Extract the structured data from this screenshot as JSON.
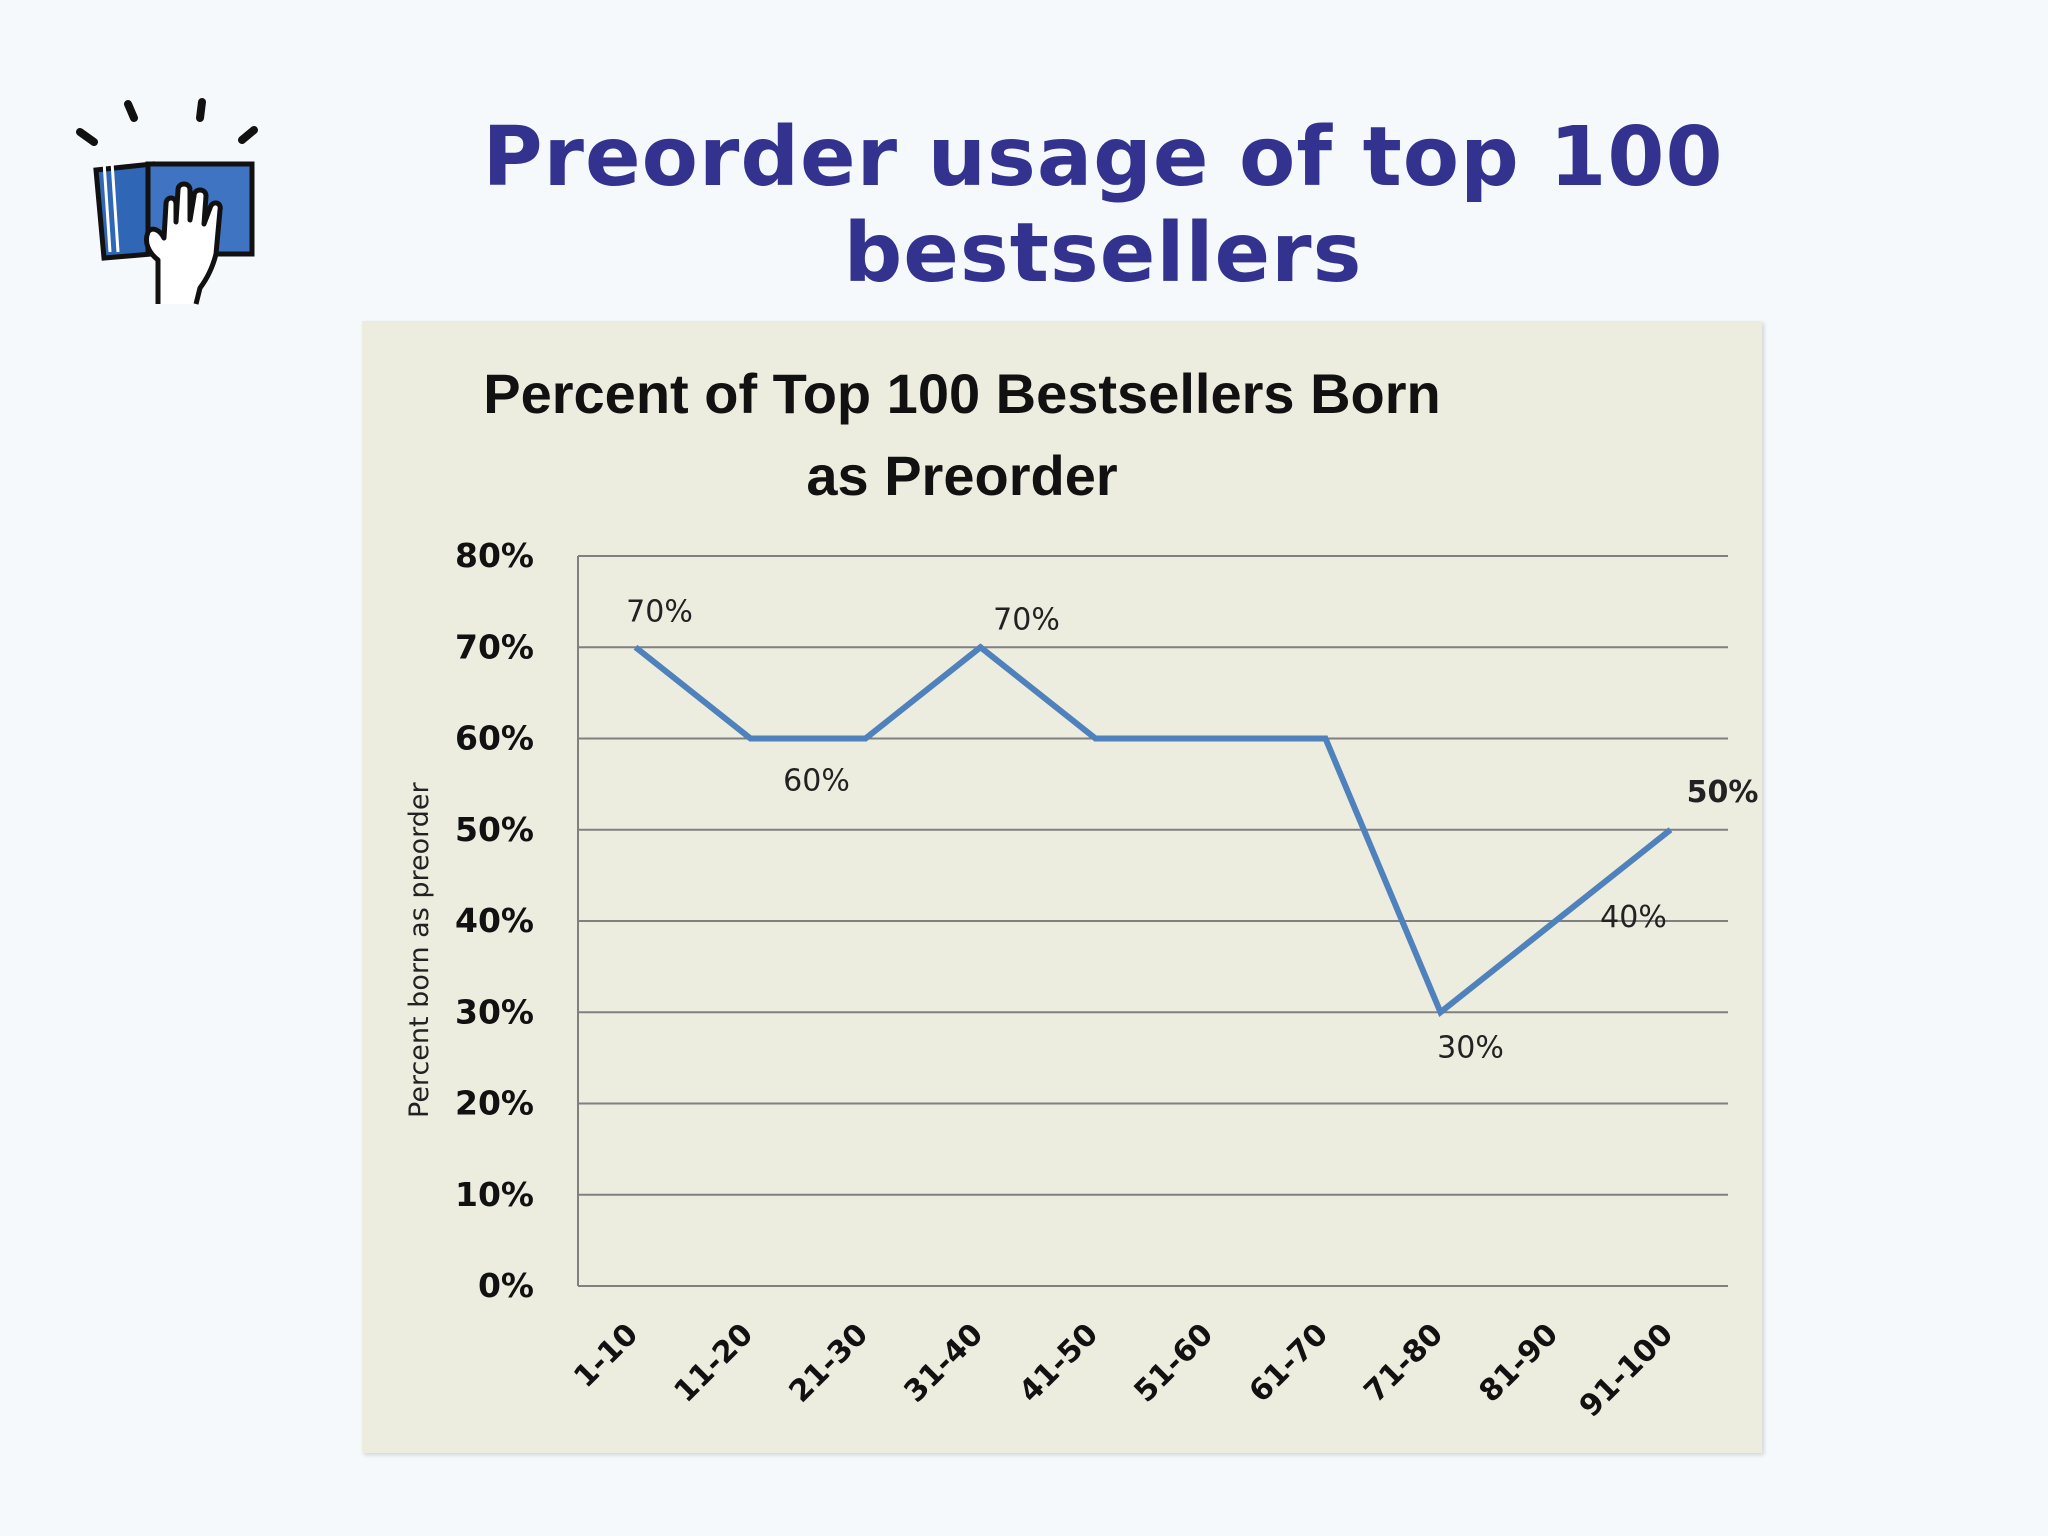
{
  "slide": {
    "title": "Preorder usage of top 100 bestsellers"
  },
  "logo": {
    "icon": "book-with-hand-icon",
    "colors": {
      "book": "#3e74c1",
      "outline": "#111111"
    }
  },
  "colors": {
    "title": "#33338f",
    "line": "#4f81bd",
    "plot_background": "#ececdf",
    "gridline": "#808080"
  },
  "chart_data": {
    "type": "line",
    "title": "Percent of Top 100 Bestsellers Born as Preorder",
    "xlabel": "",
    "ylabel": "Percent born as preorder",
    "categories": [
      "1-10",
      "11-20",
      "21-30",
      "31-40",
      "41-50",
      "51-60",
      "61-70",
      "71-80",
      "81-90",
      "91-100"
    ],
    "series": [
      {
        "values": [
          70,
          60,
          60,
          70,
          60,
          60,
          60,
          30,
          40,
          50
        ]
      }
    ],
    "data_labels": [
      {
        "index": 0,
        "text": "70%"
      },
      {
        "index": 1,
        "text": "60%"
      },
      {
        "index": 3,
        "text": "70%"
      },
      {
        "index": 7,
        "text": "30%"
      },
      {
        "index": 8,
        "text": "40%"
      },
      {
        "index": 9,
        "text": "50%"
      }
    ],
    "y_ticks": [
      "0%",
      "10%",
      "20%",
      "30%",
      "40%",
      "50%",
      "60%",
      "70%",
      "80%"
    ],
    "ylim": [
      0,
      80
    ],
    "grid": true,
    "legend": "none"
  }
}
